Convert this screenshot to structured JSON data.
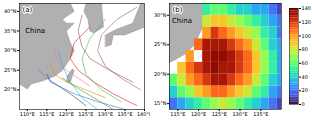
{
  "chart_data": [
    {
      "type": "tracks",
      "panel_label": "(a)",
      "xlim": [
        108,
        140
      ],
      "xticks": [
        {
          "value": 110,
          "label": "110°E"
        },
        {
          "value": 115,
          "label": "115°E"
        },
        {
          "value": 120,
          "label": "120°E"
        },
        {
          "value": 125,
          "label": "125°E"
        },
        {
          "value": 130,
          "label": "130°E"
        },
        {
          "value": 135,
          "label": "135°E"
        },
        {
          "value": 140,
          "label": "140°E"
        }
      ],
      "ylim": [
        15,
        42
      ],
      "yticks": [
        {
          "value": 20,
          "label": "20°N"
        },
        {
          "value": 25,
          "label": "25°N"
        },
        {
          "value": 30,
          "label": "30°N"
        },
        {
          "value": 35,
          "label": "35°N"
        },
        {
          "value": 40,
          "label": "40°N"
        }
      ],
      "annotations": [
        {
          "text": "China",
          "lon": 112,
          "lat": 35
        }
      ],
      "land": [
        [
          [
            108,
            42
          ],
          [
            121,
            42
          ],
          [
            122,
            40
          ],
          [
            119,
            38
          ],
          [
            120,
            37
          ],
          [
            122,
            37
          ],
          [
            120,
            35
          ],
          [
            121,
            32
          ],
          [
            122,
            30
          ],
          [
            121,
            28
          ],
          [
            119,
            25
          ],
          [
            117,
            23.5
          ],
          [
            114,
            22.3
          ],
          [
            111,
            21.5
          ],
          [
            110,
            20.2
          ],
          [
            108,
            21.5
          ]
        ],
        [
          [
            120.2,
            22
          ],
          [
            121,
            22
          ],
          [
            122,
            25
          ],
          [
            121.5,
            25.3
          ],
          [
            120.2,
            23.5
          ]
        ],
        [
          [
            124.5,
            40
          ],
          [
            125,
            42
          ],
          [
            129,
            42
          ],
          [
            129.5,
            36
          ],
          [
            127,
            34.5
          ],
          [
            126,
            35
          ],
          [
            125.5,
            38
          ]
        ],
        [
          [
            130,
            31
          ],
          [
            131.5,
            31.5
          ],
          [
            132,
            34
          ],
          [
            135,
            34
          ],
          [
            140,
            36
          ],
          [
            140,
            42
          ],
          [
            139,
            42
          ],
          [
            137,
            37
          ],
          [
            133,
            35.5
          ],
          [
            130,
            34
          ]
        ]
      ],
      "tracks": [
        {
          "color": "#e41a1c",
          "lon": [
            138,
            132,
            127,
            123,
            121,
            122,
            126
          ],
          "lat": [
            16,
            19,
            22,
            25,
            28,
            32,
            36
          ]
        },
        {
          "color": "#377eb8",
          "lon": [
            135,
            128,
            122,
            118,
            115,
            113
          ],
          "lat": [
            15,
            17,
            19,
            21,
            23,
            25
          ]
        },
        {
          "color": "#4daf4a",
          "lon": [
            134,
            129,
            125,
            124,
            126,
            130
          ],
          "lat": [
            17,
            20,
            24,
            28,
            33,
            38
          ]
        },
        {
          "color": "#ff7f00",
          "lon": [
            130,
            125,
            120,
            117,
            116
          ],
          "lat": [
            18,
            20,
            22,
            24,
            27
          ]
        },
        {
          "color": "#984ea3",
          "lon": [
            139,
            134,
            130,
            128,
            129,
            133,
            138
          ],
          "lat": [
            20,
            23,
            26,
            30,
            34,
            38,
            41
          ]
        },
        {
          "color": "#17becf",
          "lon": [
            128,
            124,
            121,
            119,
            118
          ],
          "lat": [
            15,
            18,
            22,
            26,
            30
          ]
        },
        {
          "color": "#e377c2",
          "lon": [
            126,
            123,
            120,
            118,
            117
          ],
          "lat": [
            21,
            23,
            25,
            27,
            30
          ]
        },
        {
          "color": "#8c564b",
          "lon": [
            137,
            131,
            126,
            124,
            123,
            124
          ],
          "lat": [
            22,
            25,
            28,
            31,
            35,
            39
          ]
        },
        {
          "color": "#2ca02c",
          "lon": [
            132,
            127,
            122,
            119
          ],
          "lat": [
            15,
            18,
            21,
            23
          ]
        },
        {
          "color": "#1f3a93",
          "lon": [
            125,
            121,
            118,
            116,
            115
          ],
          "lat": [
            16,
            19,
            21,
            22,
            24
          ]
        }
      ]
    },
    {
      "type": "heatmap",
      "panel_label": "(b)",
      "xlim": [
        113,
        140
      ],
      "xticks": [
        {
          "value": 115,
          "label": "115°E"
        },
        {
          "value": 120,
          "label": "120°E"
        },
        {
          "value": 125,
          "label": "125°E"
        },
        {
          "value": 130,
          "label": "130°E"
        },
        {
          "value": 135,
          "label": "135°E"
        }
      ],
      "ylim": [
        14,
        32
      ],
      "yticks": [
        {
          "value": 15,
          "label": "15°N"
        },
        {
          "value": 20,
          "label": "20°N"
        },
        {
          "value": 25,
          "label": "25°N"
        },
        {
          "value": 30,
          "label": "30°N"
        }
      ],
      "annotations": [
        {
          "text": "China",
          "lon": 116,
          "lat": 29
        }
      ],
      "land": [
        [
          [
            108,
            42
          ],
          [
            121,
            42
          ],
          [
            122,
            40
          ],
          [
            119,
            38
          ],
          [
            120,
            37
          ],
          [
            122,
            37
          ],
          [
            120,
            35
          ],
          [
            121,
            32
          ],
          [
            122,
            30
          ],
          [
            121,
            28
          ],
          [
            119,
            25
          ],
          [
            117,
            23.5
          ],
          [
            114,
            22.3
          ],
          [
            111,
            21.5
          ],
          [
            110,
            20.2
          ],
          [
            108,
            21.5
          ]
        ]
      ],
      "cell_lon": [
        114,
        116,
        118,
        120,
        122,
        124,
        126,
        128,
        130,
        132,
        134,
        136,
        138,
        140
      ],
      "cell_lat": [
        15,
        17,
        19,
        21,
        23,
        25,
        27,
        29,
        31
      ],
      "cells": [
        [
          20,
          30,
          40,
          50,
          60,
          70,
          80,
          70,
          60,
          50,
          40,
          30,
          20,
          10
        ],
        [
          40,
          60,
          70,
          90,
          100,
          110,
          110,
          100,
          90,
          80,
          60,
          50,
          30,
          20
        ],
        [
          60,
          80,
          100,
          110,
          120,
          130,
          130,
          120,
          110,
          100,
          80,
          60,
          40,
          30
        ],
        [
          null,
          90,
          110,
          120,
          130,
          140,
          130,
          130,
          120,
          110,
          90,
          70,
          50,
          30
        ],
        [
          null,
          null,
          100,
          null,
          130,
          140,
          140,
          130,
          120,
          110,
          90,
          70,
          50,
          30
        ],
        [
          null,
          null,
          null,
          110,
          130,
          130,
          130,
          120,
          110,
          100,
          80,
          60,
          40,
          30
        ],
        [
          null,
          null,
          null,
          null,
          100,
          120,
          110,
          100,
          90,
          80,
          70,
          50,
          40,
          20
        ],
        [
          null,
          null,
          null,
          null,
          80,
          90,
          90,
          80,
          70,
          60,
          50,
          40,
          30,
          20
        ],
        [
          null,
          null,
          null,
          null,
          50,
          60,
          60,
          50,
          40,
          40,
          30,
          30,
          20,
          10
        ]
      ],
      "colorbar_lim": [
        0,
        140
      ],
      "colorbar_ticks": [
        0,
        20,
        40,
        60,
        80,
        100,
        120,
        140
      ]
    }
  ]
}
